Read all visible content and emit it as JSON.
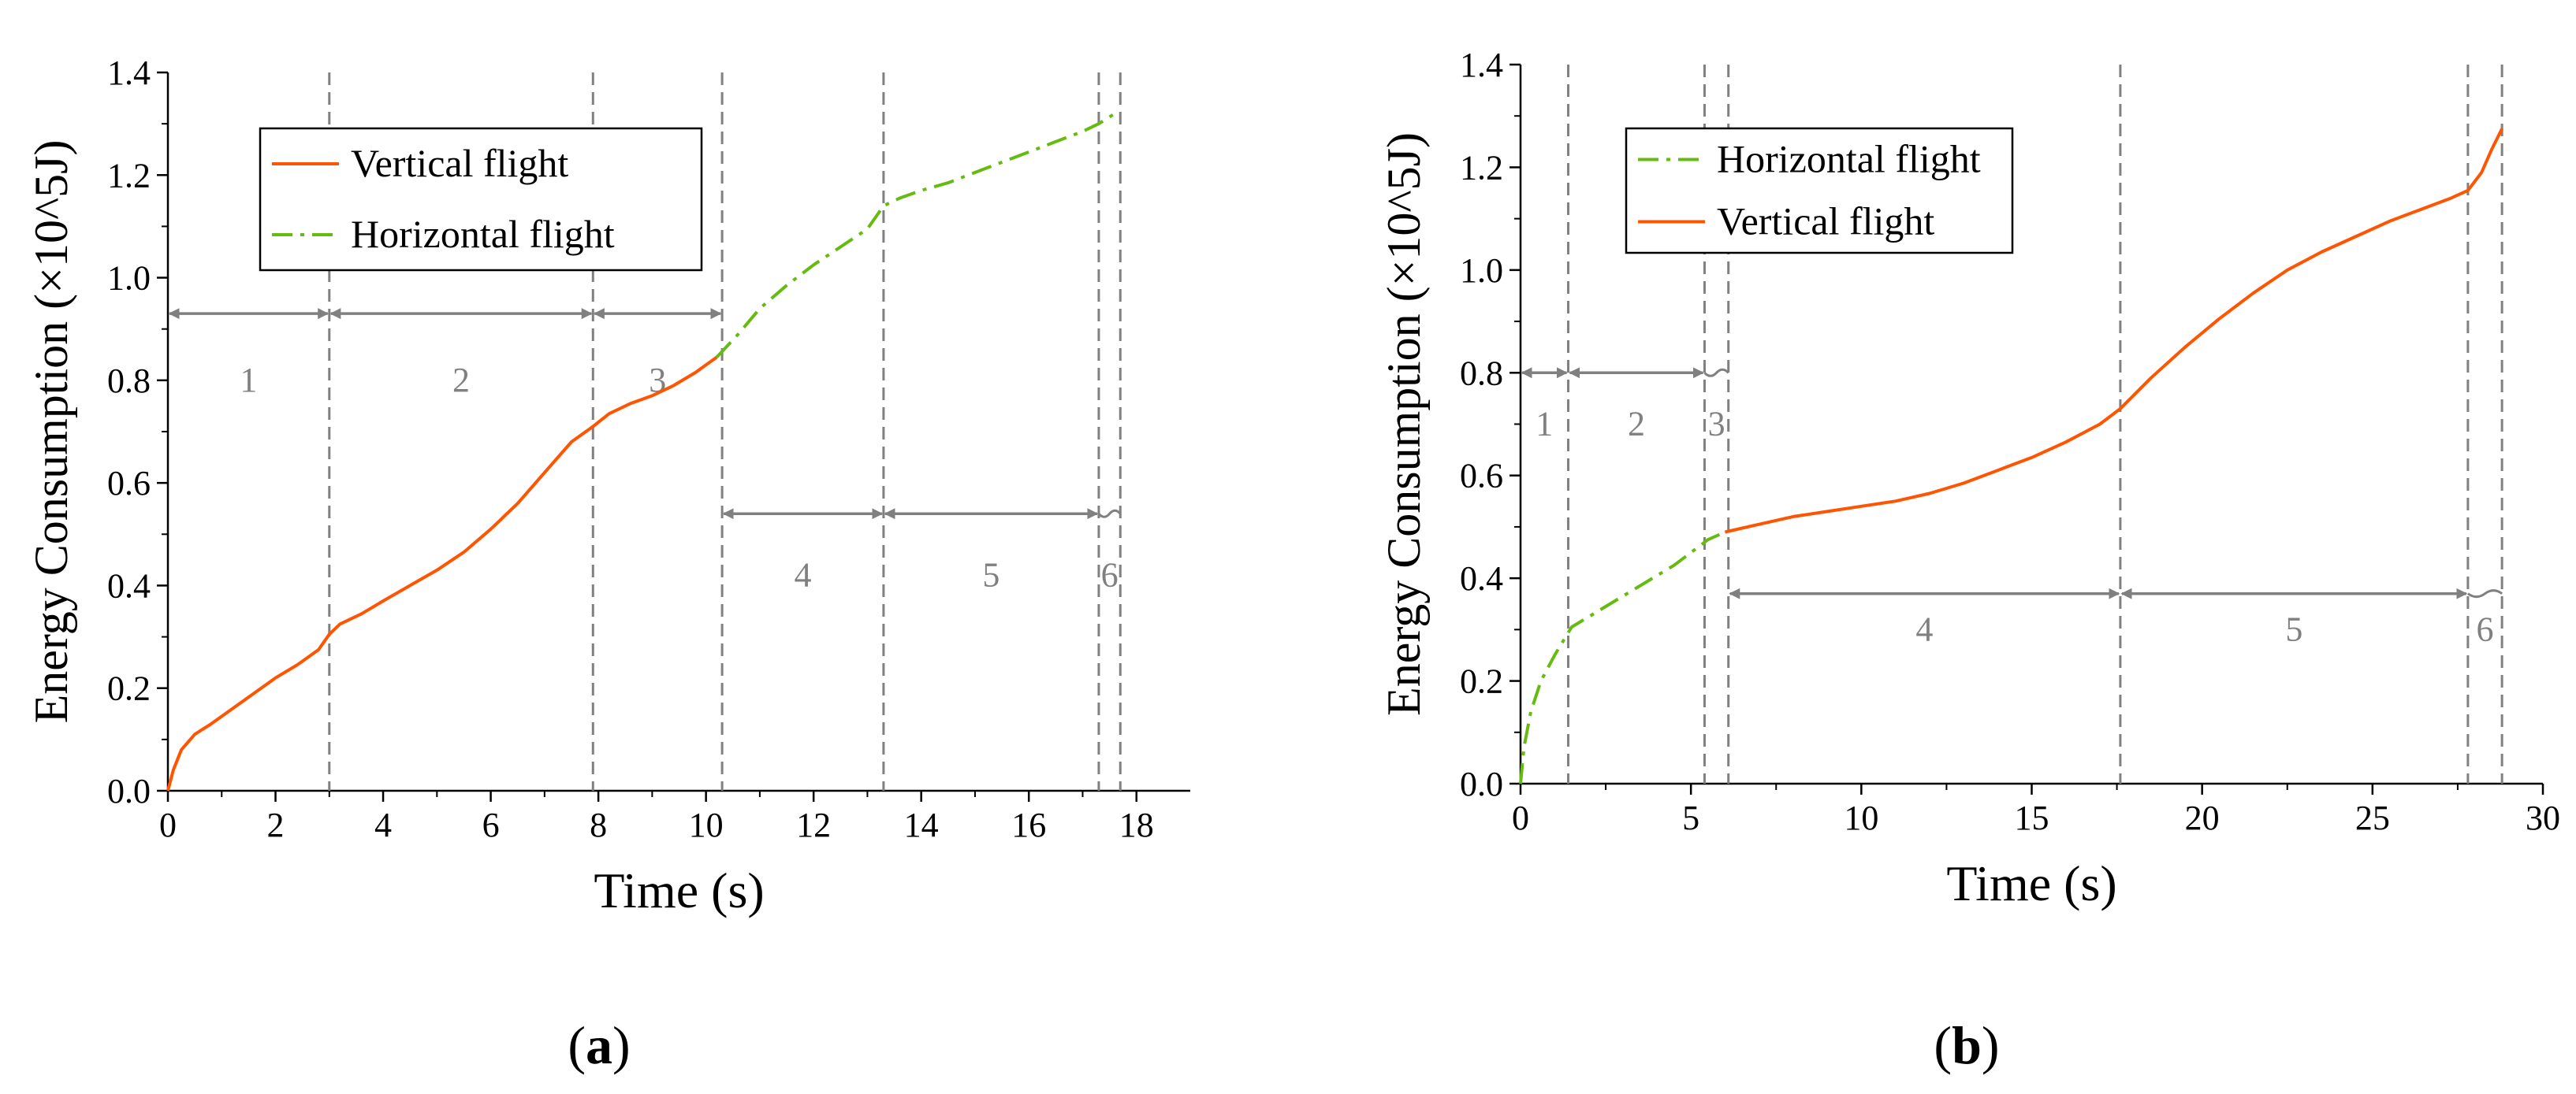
{
  "chart_data": [
    {
      "id": "a",
      "type": "line",
      "caption": "a",
      "xlabel": "Time (s)",
      "ylabel": "Energy Consumption (×10^5J)",
      "xlim": [
        0,
        19
      ],
      "ylim": [
        0,
        1.4
      ],
      "xticks": [
        0,
        2,
        4,
        6,
        8,
        10,
        12,
        14,
        16,
        18
      ],
      "yticks": [
        0.0,
        0.2,
        0.4,
        0.6,
        0.8,
        1.0,
        1.2,
        1.4
      ],
      "ytick_labels": [
        "0.0",
        "0.2",
        "0.4",
        "0.6",
        "0.8",
        "1.0",
        "1.2",
        "1.4"
      ],
      "legend": [
        "Vertical flight",
        "Horizontal flight"
      ],
      "legend_position": "top-left",
      "series": [
        {
          "name": "Vertical flight",
          "color": "#FF5500",
          "style": "solid",
          "x": [
            0,
            0.1,
            0.25,
            0.5,
            0.8,
            1.2,
            1.6,
            2.0,
            2.4,
            2.8,
            3.0,
            3.2,
            3.6,
            4.0,
            4.5,
            5.0,
            5.5,
            6.0,
            6.5,
            7.0,
            7.5,
            7.9,
            8.2,
            8.6,
            9.0,
            9.4,
            9.8,
            10.2
          ],
          "y": [
            0.0,
            0.04,
            0.08,
            0.11,
            0.13,
            0.16,
            0.19,
            0.22,
            0.245,
            0.275,
            0.305,
            0.325,
            0.345,
            0.37,
            0.4,
            0.43,
            0.465,
            0.51,
            0.56,
            0.62,
            0.68,
            0.71,
            0.735,
            0.755,
            0.77,
            0.79,
            0.815,
            0.845
          ]
        },
        {
          "name": "Horizontal flight",
          "color": "#66BB11",
          "style": "dashdot",
          "x": [
            10.2,
            10.6,
            11.0,
            11.5,
            12.0,
            12.5,
            13.0,
            13.3,
            13.6,
            14.0,
            14.5,
            15.0,
            15.5,
            16.0,
            16.5,
            17.0,
            17.3,
            17.6
          ],
          "y": [
            0.845,
            0.89,
            0.94,
            0.985,
            1.025,
            1.06,
            1.095,
            1.14,
            1.155,
            1.17,
            1.185,
            1.205,
            1.225,
            1.245,
            1.265,
            1.285,
            1.3,
            1.32
          ]
        }
      ],
      "phase_boundaries": [
        3.0,
        7.9,
        10.3,
        13.3,
        17.3,
        17.7
      ],
      "phase_arrows": [
        {
          "label": "1",
          "x0": 0,
          "x1": 3.0,
          "y": 0.93,
          "label_y": 0.8
        },
        {
          "label": "2",
          "x0": 3.0,
          "x1": 7.9,
          "y": 0.93,
          "label_y": 0.8
        },
        {
          "label": "3",
          "x0": 7.9,
          "x1": 10.3,
          "y": 0.93,
          "label_y": 0.8
        },
        {
          "label": "4",
          "x0": 10.3,
          "x1": 13.3,
          "y": 0.54,
          "label_y": 0.42
        },
        {
          "label": "5",
          "x0": 13.3,
          "x1": 17.3,
          "y": 0.54,
          "label_y": 0.42
        },
        {
          "label": "6",
          "x0": 17.3,
          "x1": 17.7,
          "y": 0.54,
          "label_y": 0.42
        }
      ]
    },
    {
      "id": "b",
      "type": "line",
      "caption": "b",
      "xlabel": "Time (s)",
      "ylabel": "Energy Consumption (×10^5J)",
      "xlim": [
        0,
        30
      ],
      "ylim": [
        0,
        1.4
      ],
      "xticks": [
        0,
        5,
        10,
        15,
        20,
        25,
        30
      ],
      "yticks": [
        0.0,
        0.2,
        0.4,
        0.6,
        0.8,
        1.0,
        1.2,
        1.4
      ],
      "ytick_labels": [
        "0.0",
        "0.2",
        "0.4",
        "0.6",
        "0.8",
        "1.0",
        "1.2",
        "1.4"
      ],
      "legend": [
        "Horizontal flight",
        "Vertical flight"
      ],
      "legend_position": "top-left",
      "series": [
        {
          "name": "Horizontal flight",
          "color": "#66BB11",
          "style": "dashdot",
          "x": [
            0,
            0.1,
            0.3,
            0.6,
            1.0,
            1.5,
            2.0,
            2.5,
            3.0,
            3.5,
            4.0,
            4.5,
            5.0,
            5.5,
            6.0
          ],
          "y": [
            0.0,
            0.07,
            0.14,
            0.2,
            0.25,
            0.305,
            0.325,
            0.345,
            0.365,
            0.385,
            0.405,
            0.425,
            0.45,
            0.475,
            0.49
          ]
        },
        {
          "name": "Vertical flight",
          "color": "#FF5500",
          "style": "solid",
          "x": [
            6.0,
            7.0,
            8.0,
            9.0,
            10.0,
            11.0,
            12.0,
            13.0,
            14.0,
            15.0,
            16.0,
            17.0,
            17.6,
            18.5,
            19.5,
            20.5,
            21.5,
            22.5,
            23.5,
            24.5,
            25.5,
            26.5,
            27.3,
            27.8,
            28.2,
            28.5,
            28.8
          ],
          "y": [
            0.49,
            0.505,
            0.52,
            0.53,
            0.54,
            0.55,
            0.565,
            0.585,
            0.61,
            0.635,
            0.665,
            0.7,
            0.73,
            0.79,
            0.85,
            0.905,
            0.955,
            1.0,
            1.035,
            1.065,
            1.095,
            1.12,
            1.14,
            1.155,
            1.19,
            1.235,
            1.275
          ]
        }
      ],
      "phase_boundaries": [
        1.4,
        5.4,
        6.1,
        17.6,
        27.8,
        28.8
      ],
      "phase_arrows": [
        {
          "label": "1",
          "x0": 0,
          "x1": 1.4,
          "y": 0.8,
          "label_y": 0.7
        },
        {
          "label": "2",
          "x0": 1.4,
          "x1": 5.4,
          "y": 0.8,
          "label_y": 0.7
        },
        {
          "label": "3",
          "x0": 5.4,
          "x1": 6.1,
          "y": 0.8,
          "label_y": 0.7
        },
        {
          "label": "4",
          "x0": 6.1,
          "x1": 17.6,
          "y": 0.37,
          "label_y": 0.3
        },
        {
          "label": "5",
          "x0": 17.6,
          "x1": 27.8,
          "y": 0.37,
          "label_y": 0.3
        },
        {
          "label": "6",
          "x0": 27.8,
          "x1": 28.8,
          "y": 0.37,
          "label_y": 0.3
        }
      ]
    }
  ]
}
